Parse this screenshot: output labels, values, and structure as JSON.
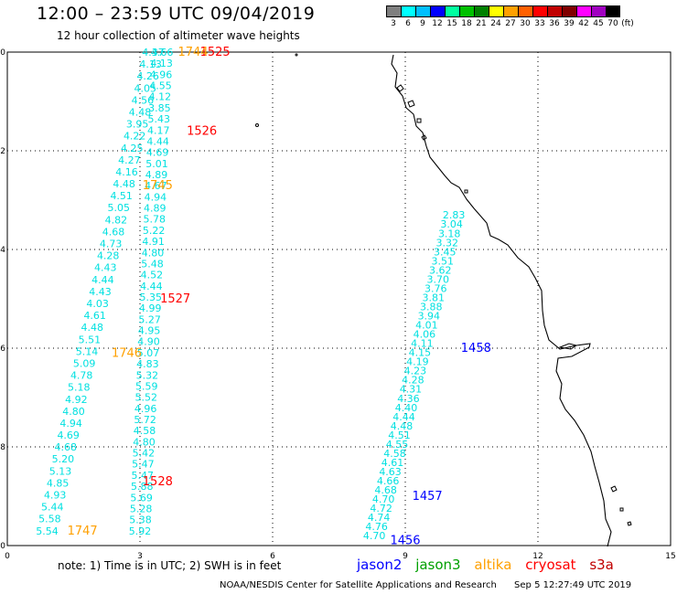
{
  "header": {
    "title": "12:00 – 23:59 UTC 09/04/2019",
    "subtitle": "12 hour collection of altimeter wave heights"
  },
  "scale": {
    "colors": [
      "#7f7f7f",
      "#00ffff",
      "#00bfff",
      "#0000ff",
      "#00ffa0",
      "#00c000",
      "#008000",
      "#ffff00",
      "#ffa000",
      "#ff6000",
      "#ff0000",
      "#c00000",
      "#800000",
      "#ff00ff",
      "#a000c0",
      "#000000"
    ],
    "labels": [
      "3",
      "6",
      "9",
      "12",
      "15",
      "18",
      "21",
      "24",
      "27",
      "30",
      "33",
      "36",
      "39",
      "42",
      "45",
      "70"
    ],
    "unit": "(ft)"
  },
  "axes": {
    "x_ticks": [
      "0",
      "3",
      "6",
      "9",
      "12",
      "15"
    ],
    "y_ticks": [
      "0",
      "-2",
      "-4",
      "-6",
      "-8",
      "-10"
    ]
  },
  "colors": {
    "jason2": "#0000ff",
    "jason3": "#00a000",
    "altika": "#ffa000",
    "cryosat": "#ff0000",
    "s3a": "#c00000",
    "swh": "#00e0e0"
  },
  "passes": [
    {
      "id": "1525",
      "color": "#ff0000",
      "lon": 4.7,
      "lat": 0.0
    },
    {
      "id": "1526",
      "color": "#ff0000",
      "lon": 4.4,
      "lat": -1.6
    },
    {
      "id": "1527",
      "color": "#ff0000",
      "lon": 3.8,
      "lat": -5.0
    },
    {
      "id": "1528",
      "color": "#ff0000",
      "lon": 3.4,
      "lat": -8.7
    },
    {
      "id": "1744",
      "color": "#ffa000",
      "lon": 4.2,
      "lat": 0.0
    },
    {
      "id": "1745",
      "color": "#ffa000",
      "lon": 3.4,
      "lat": -2.7
    },
    {
      "id": "1746",
      "color": "#ffa000",
      "lon": 2.7,
      "lat": -6.1
    },
    {
      "id": "1747",
      "color": "#ffa000",
      "lon": 1.7,
      "lat": -9.7
    },
    {
      "id": "1458",
      "color": "#0000ff",
      "lon": 10.6,
      "lat": -6.0
    },
    {
      "id": "1457",
      "color": "#0000ff",
      "lon": 9.5,
      "lat": -9.0
    },
    {
      "id": "1456",
      "color": "#0000ff",
      "lon": 9.0,
      "lat": -9.9
    }
  ],
  "tracks": [
    {
      "name": "track-left",
      "start": {
        "lon": 3.3,
        "lat": 0.0
      },
      "end": {
        "lon": 0.9,
        "lat": -9.7
      },
      "swh": [
        "4.37",
        "4.13",
        "4.26",
        "4.05",
        "4.56",
        "4.48",
        "3.95",
        "4.22",
        "4.25",
        "4.27",
        "4.16",
        "4.48",
        "4.51",
        "5.05",
        "4.82",
        "4.68",
        "4.73",
        "4.28",
        "4.43",
        "4.44",
        "4.43",
        "4.03",
        "4.61",
        "4.48",
        "5.51",
        "5.14",
        "5.09",
        "4.78",
        "5.18",
        "4.92",
        "4.80",
        "4.94",
        "4.69",
        "4.68",
        "5.20",
        "5.13",
        "4.85",
        "4.93",
        "5.44",
        "5.58",
        "5.54"
      ]
    },
    {
      "name": "track-right",
      "start": {
        "lon": 3.5,
        "lat": 0.0
      },
      "end": {
        "lon": 3.0,
        "lat": -9.7
      },
      "swh": [
        "4.66",
        "4.13",
        "4.96",
        "4.55",
        "4.12",
        "3.85",
        "5.43",
        "4.17",
        "4.44",
        "4.69",
        "5.01",
        "4.89",
        "4.67",
        "4.94",
        "4.89",
        "5.78",
        "5.22",
        "4.91",
        "4.80",
        "5.48",
        "4.52",
        "4.44",
        "5.35",
        "4.99",
        "5.27",
        "4.95",
        "4.90",
        "5.07",
        "4.83",
        "5.32",
        "5.59",
        "5.52",
        "4.96",
        "5.72",
        "4.58",
        "4.80",
        "5.42",
        "5.47",
        "5.47",
        "5.88",
        "5.69",
        "5.28",
        "5.38",
        "5.92"
      ]
    },
    {
      "name": "track-jason2",
      "start": {
        "lon": 10.1,
        "lat": -3.3
      },
      "end": {
        "lon": 8.3,
        "lat": -9.8
      },
      "swh": [
        "2.83",
        "3.04",
        "3.18",
        "3.32",
        "3.45",
        "3.51",
        "3.62",
        "3.70",
        "3.76",
        "3.81",
        "3.88",
        "3.94",
        "4.01",
        "4.06",
        "4.11",
        "4.15",
        "4.19",
        "4.23",
        "4.28",
        "4.31",
        "4.36",
        "4.40",
        "4.44",
        "4.48",
        "4.51",
        "4.55",
        "4.58",
        "4.61",
        "4.63",
        "4.66",
        "4.68",
        "4.70",
        "4.72",
        "4.74",
        "4.76",
        "4.70"
      ]
    }
  ],
  "note": "note:  1) Time is in UTC;  2) SWH is in feet",
  "legend": {
    "jason2": "jason2",
    "jason3": "jason3",
    "altika": "altika",
    "cryosat": "cryosat",
    "s3a": "s3a"
  },
  "credit": "NOAA/NESDIS Center for Satellite Applications and Research",
  "stamp": "Sep  5 12:27:49 UTC 2019"
}
